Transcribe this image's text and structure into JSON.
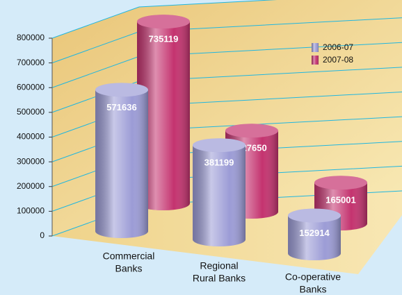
{
  "chart_data": {
    "type": "bar3d",
    "categories": [
      [
        "Commercial",
        "Banks"
      ],
      [
        "Regional",
        "Rural Banks"
      ],
      [
        "Co-operative",
        "Banks"
      ]
    ],
    "series": [
      {
        "name": "2006-07",
        "color": "#9c9cd6",
        "values": [
          571636,
          381199,
          152914
        ]
      },
      {
        "name": "2007-08",
        "color": "#c4336f",
        "values": [
          735119,
          327650,
          165001
        ]
      }
    ],
    "ylim": [
      0,
      800000
    ],
    "yticks": [
      0,
      100000,
      200000,
      300000,
      400000,
      500000,
      600000,
      700000,
      800000
    ],
    "grid": true,
    "legend": "top-right"
  }
}
